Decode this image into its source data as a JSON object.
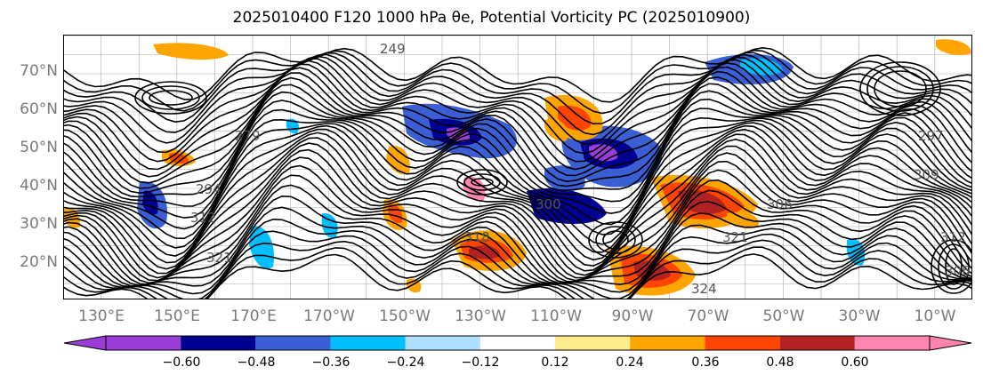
{
  "title": "2025010400 F120 1000 hPa θe, Potential Vorticity PC (2025010900)",
  "map": {
    "lat_labels": [
      "70°N",
      "60°N",
      "50°N",
      "40°N",
      "30°N",
      "20°N"
    ],
    "lon_labels": [
      "130°E",
      "150°E",
      "170°E",
      "170°W",
      "150°W",
      "130°W",
      "110°W",
      "90°W",
      "70°W",
      "50°W",
      "30°W",
      "10°W"
    ],
    "contour_labels": [
      "249",
      "279",
      "294",
      "312",
      "321",
      "318",
      "300",
      "309",
      "297",
      "306",
      "321",
      "324",
      "312",
      "306"
    ]
  },
  "colorbar": {
    "tick_labels": [
      "−0.60",
      "−0.48",
      "−0.36",
      "−0.24",
      "−0.12",
      "0.12",
      "0.24",
      "0.36",
      "0.48",
      "0.60"
    ],
    "colors": [
      "#9a3dd8",
      "#000090",
      "#3a5fd4",
      "#00bfff",
      "#b0e0ff",
      "#ffffff",
      "#ffec8c",
      "#ffa500",
      "#ff4500",
      "#b22222",
      "#ff85b0"
    ]
  },
  "chart_data": {
    "type": "heatmap",
    "title": "2025010400 F120 1000 hPa θe, Potential Vorticity PC (2025010900)",
    "variable_contours": "1000 hPa equivalent potential temperature θe (K)",
    "variable_shaded": "Potential Vorticity PC",
    "x_range": [
      "120°E",
      "0°"
    ],
    "y_range": [
      "10°N",
      "80°N"
    ],
    "color_levels": [
      -0.6,
      -0.48,
      -0.36,
      -0.24,
      -0.12,
      0.12,
      0.24,
      0.36,
      0.48,
      0.6
    ],
    "extend": "both",
    "colorbar_location": "bottom"
  }
}
